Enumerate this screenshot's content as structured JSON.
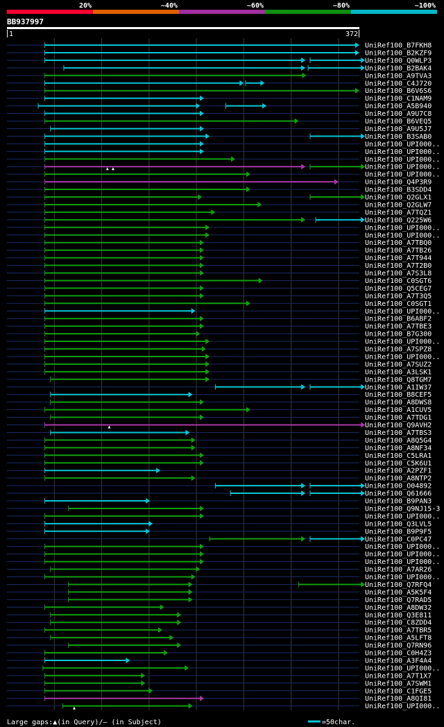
{
  "chart_data": {
    "type": "alignment-overview",
    "query_id": "BB937997",
    "query_length": 372,
    "axis_start_label": "1",
    "axis_end_label": "372",
    "footer_text": "Large gaps:▲(in Query)/– (in Subject)",
    "scale_text": "=50char.",
    "identity_legend": [
      {
        "label": "20%",
        "color": "#ff0033"
      },
      {
        "label": "~40%",
        "color": "#e06000"
      },
      {
        "label": "~60%",
        "color": "#a030a0"
      },
      {
        "label": "~80%",
        "color": "#109010"
      },
      {
        "label": "~100%",
        "color": "#00b8c8"
      }
    ],
    "hits": [
      {
        "label": "UniRef100_B7FKH8",
        "segs": [
          [
            40,
            372,
            "c"
          ]
        ]
      },
      {
        "label": "UniRef100_B2KZF9",
        "segs": [
          [
            40,
            372,
            "c"
          ]
        ]
      },
      {
        "label": "UniRef100_Q0WLP3",
        "segs": [
          [
            40,
            315,
            "c"
          ],
          [
            320,
            378,
            "c"
          ]
        ]
      },
      {
        "label": "UniRef100_B2BAK4",
        "segs": [
          [
            60,
            315,
            "c"
          ],
          [
            318,
            378,
            "c"
          ]
        ]
      },
      {
        "label": "UniRef100_A9TVA3",
        "segs": [
          [
            40,
            316,
            "g"
          ]
        ]
      },
      {
        "label": "UniRef100_C4J720",
        "segs": [
          [
            40,
            250,
            "c"
          ],
          [
            252,
            272,
            "c"
          ]
        ]
      },
      {
        "label": "UniRef100_B6V6S6",
        "segs": [
          [
            40,
            372,
            "g"
          ]
        ]
      },
      {
        "label": "UniRef100_C1NAM9",
        "segs": [
          [
            40,
            208,
            "c"
          ]
        ]
      },
      {
        "label": "UniRef100_A5B940",
        "segs": [
          [
            33,
            204,
            "c"
          ],
          [
            231,
            274,
            "c"
          ]
        ]
      },
      {
        "label": "UniRef100_A9U7C8",
        "segs": [
          [
            40,
            208,
            "c"
          ]
        ]
      },
      {
        "label": "UniRef100_B6VEQ5",
        "segs": [
          [
            40,
            308,
            "g"
          ]
        ]
      },
      {
        "label": "UniRef100_A9U5J7",
        "segs": [
          [
            46,
            208,
            "c"
          ]
        ]
      },
      {
        "label": "UniRef100_B3SAB0",
        "segs": [
          [
            40,
            214,
            "c"
          ],
          [
            320,
            378,
            "c"
          ]
        ]
      },
      {
        "label": "UniRef100_UPI000..",
        "segs": [
          [
            40,
            208,
            "c"
          ]
        ]
      },
      {
        "label": "UniRef100_UPI000..",
        "segs": [
          [
            40,
            208,
            "c"
          ]
        ]
      },
      {
        "label": "UniRef100_UPI000..",
        "segs": [
          [
            40,
            241,
            "g"
          ]
        ]
      },
      {
        "label": "UniRef100_UPI000..",
        "segs": [
          [
            40,
            315,
            "m"
          ],
          [
            320,
            378,
            "g"
          ]
        ],
        "gaps": [
          106,
          112
        ]
      },
      {
        "label": "UniRef100_UPI000..",
        "segs": [
          [
            40,
            257,
            "g"
          ]
        ]
      },
      {
        "label": "UniRef100_Q4P3R9",
        "segs": [
          [
            40,
            350,
            "m"
          ]
        ]
      },
      {
        "label": "UniRef100_B3SDD4",
        "segs": [
          [
            40,
            257,
            "g"
          ]
        ]
      },
      {
        "label": "UniRef100_Q2GLX1",
        "segs": [
          [
            40,
            206,
            "g"
          ],
          [
            320,
            378,
            "g"
          ]
        ]
      },
      {
        "label": "UniRef100_Q2GLW7",
        "segs": [
          [
            40,
            269,
            "g"
          ]
        ]
      },
      {
        "label": "UniRef100_A7TQZ1",
        "segs": [
          [
            40,
            220,
            "g"
          ]
        ]
      },
      {
        "label": "UniRef100_Q225W6",
        "segs": [
          [
            40,
            315,
            "g"
          ],
          [
            326,
            378,
            "c"
          ]
        ]
      },
      {
        "label": "UniRef100_UPI000..",
        "segs": [
          [
            40,
            214,
            "g"
          ]
        ]
      },
      {
        "label": "UniRef100_UPI000..",
        "segs": [
          [
            40,
            214,
            "g"
          ]
        ]
      },
      {
        "label": "UniRef100_A7TBQ0",
        "segs": [
          [
            40,
            208,
            "g"
          ]
        ]
      },
      {
        "label": "UniRef100_A7TB26",
        "segs": [
          [
            40,
            208,
            "g"
          ]
        ]
      },
      {
        "label": "UniRef100_A7T944",
        "segs": [
          [
            40,
            208,
            "g"
          ]
        ]
      },
      {
        "label": "UniRef100_A7T2B0",
        "segs": [
          [
            40,
            208,
            "g"
          ]
        ]
      },
      {
        "label": "UniRef100_A7S3L8",
        "segs": [
          [
            40,
            208,
            "g"
          ]
        ]
      },
      {
        "label": "UniRef100_C0SGT6",
        "segs": [
          [
            40,
            270,
            "g"
          ]
        ]
      },
      {
        "label": "UniRef100_Q5CEG7",
        "segs": [
          [
            40,
            208,
            "g"
          ]
        ]
      },
      {
        "label": "UniRef100_A7T3Q5",
        "segs": [
          [
            40,
            208,
            "g"
          ]
        ]
      },
      {
        "label": "UniRef100_C0SGT1",
        "segs": [
          [
            40,
            257,
            "g"
          ]
        ]
      },
      {
        "label": "UniRef100_UPI000..",
        "segs": [
          [
            40,
            199,
            "c"
          ]
        ]
      },
      {
        "label": "UniRef100_B6ABF2",
        "segs": [
          [
            40,
            208,
            "g"
          ]
        ]
      },
      {
        "label": "UniRef100_A7TBE3",
        "segs": [
          [
            40,
            208,
            "g"
          ]
        ]
      },
      {
        "label": "UniRef100_B7G300",
        "segs": [
          [
            40,
            204,
            "g"
          ]
        ]
      },
      {
        "label": "UniRef100_UPI000..",
        "segs": [
          [
            40,
            214,
            "g"
          ]
        ]
      },
      {
        "label": "UniRef100_A7SPZ8",
        "segs": [
          [
            40,
            210,
            "g"
          ]
        ]
      },
      {
        "label": "UniRef100_UPI000..",
        "segs": [
          [
            40,
            214,
            "g"
          ]
        ]
      },
      {
        "label": "UniRef100_A7SUZ2",
        "segs": [
          [
            40,
            214,
            "g"
          ]
        ]
      },
      {
        "label": "UniRef100_A3LSK1",
        "segs": [
          [
            40,
            214,
            "g"
          ]
        ]
      },
      {
        "label": "UniRef100_Q8TGM7",
        "segs": [
          [
            46,
            214,
            "g"
          ]
        ]
      },
      {
        "label": "UniRef100_A1IW37",
        "segs": [
          [
            220,
            315,
            "c"
          ],
          [
            320,
            378,
            "c"
          ]
        ]
      },
      {
        "label": "UniRef100_B8CEF5",
        "segs": [
          [
            46,
            196,
            "c"
          ]
        ]
      },
      {
        "label": "UniRef100_A8DWS8",
        "segs": [
          [
            46,
            208,
            "g"
          ]
        ]
      },
      {
        "label": "UniRef100_A1CUV5",
        "segs": [
          [
            40,
            257,
            "g"
          ]
        ]
      },
      {
        "label": "UniRef100_A7TDG1",
        "segs": [
          [
            46,
            208,
            "g"
          ]
        ]
      },
      {
        "label": "UniRef100_Q9AVH2",
        "segs": [
          [
            40,
            378,
            "m"
          ]
        ],
        "gaps": [
          108
        ]
      },
      {
        "label": "UniRef100_A7TBS3",
        "segs": [
          [
            46,
            193,
            "c"
          ]
        ]
      },
      {
        "label": "UniRef100_A8Q5G4",
        "segs": [
          [
            40,
            199,
            "g"
          ]
        ]
      },
      {
        "label": "UniRef100_A8NF34",
        "segs": [
          [
            40,
            199,
            "g"
          ]
        ]
      },
      {
        "label": "UniRef100_C5LRA1",
        "segs": [
          [
            40,
            208,
            "g"
          ]
        ]
      },
      {
        "label": "UniRef100_C5K6U1",
        "segs": [
          [
            40,
            208,
            "g"
          ]
        ]
      },
      {
        "label": "UniRef100_A2PZF1",
        "segs": [
          [
            40,
            162,
            "c"
          ]
        ]
      },
      {
        "label": "UniRef100_A8NTP2",
        "segs": [
          [
            40,
            199,
            "g"
          ]
        ]
      },
      {
        "label": "UniRef100_O04892",
        "segs": [
          [
            220,
            315,
            "c"
          ],
          [
            320,
            378,
            "c"
          ]
        ]
      },
      {
        "label": "UniRef100_Q61666",
        "segs": [
          [
            236,
            315,
            "c"
          ],
          [
            320,
            378,
            "c"
          ]
        ]
      },
      {
        "label": "UniRef100_B9PAN3",
        "segs": [
          [
            40,
            151,
            "c"
          ]
        ]
      },
      {
        "label": "UniRef100_Q9NJ15-3",
        "segs": [
          [
            65,
            208,
            "g"
          ]
        ]
      },
      {
        "label": "UniRef100_UPI000..",
        "segs": [
          [
            40,
            208,
            "g"
          ]
        ]
      },
      {
        "label": "UniRef100_Q3LVL5",
        "segs": [
          [
            40,
            154,
            "c"
          ]
        ]
      },
      {
        "label": "UniRef100_B9P9F5",
        "segs": [
          [
            40,
            151,
            "c"
          ]
        ]
      },
      {
        "label": "UniRef100_C0PC47",
        "segs": [
          [
            214,
            315,
            "g"
          ],
          [
            320,
            378,
            "c"
          ]
        ]
      },
      {
        "label": "UniRef100_UPI000..",
        "segs": [
          [
            40,
            208,
            "g"
          ]
        ]
      },
      {
        "label": "UniRef100_UPI000..",
        "segs": [
          [
            40,
            208,
            "g"
          ]
        ]
      },
      {
        "label": "UniRef100_UPI000..",
        "segs": [
          [
            40,
            208,
            "g"
          ]
        ]
      },
      {
        "label": "UniRef100_A7AR26",
        "segs": [
          [
            46,
            204,
            "g"
          ]
        ]
      },
      {
        "label": "UniRef100_UPI000..",
        "segs": [
          [
            40,
            199,
            "g"
          ]
        ]
      },
      {
        "label": "UniRef100_Q7RFQ4",
        "segs": [
          [
            65,
            196,
            "g"
          ],
          [
            308,
            395,
            "g"
          ]
        ]
      },
      {
        "label": "UniRef100_A5K5F4",
        "segs": [
          [
            65,
            196,
            "g"
          ]
        ]
      },
      {
        "label": "UniRef100_Q7RAD5",
        "segs": [
          [
            65,
            196,
            "g"
          ]
        ]
      },
      {
        "label": "UniRef100_A8DW32",
        "segs": [
          [
            40,
            166,
            "g"
          ]
        ]
      },
      {
        "label": "UniRef100_Q3E811",
        "segs": [
          [
            46,
            184,
            "g"
          ]
        ]
      },
      {
        "label": "UniRef100_C8ZDD4",
        "segs": [
          [
            46,
            184,
            "g"
          ]
        ]
      },
      {
        "label": "UniRef100_A7TBR5",
        "segs": [
          [
            40,
            164,
            "g"
          ]
        ]
      },
      {
        "label": "UniRef100_A5LFT8",
        "segs": [
          [
            46,
            176,
            "g"
          ]
        ]
      },
      {
        "label": "UniRef100_Q7RN96",
        "segs": [
          [
            65,
            184,
            "g"
          ]
        ]
      },
      {
        "label": "UniRef100_C0H4Z3",
        "segs": [
          [
            40,
            170,
            "g"
          ]
        ]
      },
      {
        "label": "UniRef100_A3F4A4",
        "segs": [
          [
            40,
            130,
            "c"
          ]
        ]
      },
      {
        "label": "UniRef100_UPI000..",
        "segs": [
          [
            38,
            192,
            "g"
          ]
        ]
      },
      {
        "label": "UniRef100_A7T1X7",
        "segs": [
          [
            40,
            146,
            "g"
          ]
        ]
      },
      {
        "label": "UniRef100_A7SWM1",
        "segs": [
          [
            40,
            146,
            "g"
          ]
        ]
      },
      {
        "label": "UniRef100_C1FGE5",
        "segs": [
          [
            40,
            154,
            "g"
          ]
        ]
      },
      {
        "label": "UniRef100_A8QI81",
        "segs": [
          [
            40,
            208,
            "m"
          ]
        ]
      },
      {
        "label": "UniRef100_UPI000..",
        "segs": [
          [
            59,
            196,
            "g"
          ]
        ],
        "gaps": [
          71
        ]
      }
    ]
  }
}
